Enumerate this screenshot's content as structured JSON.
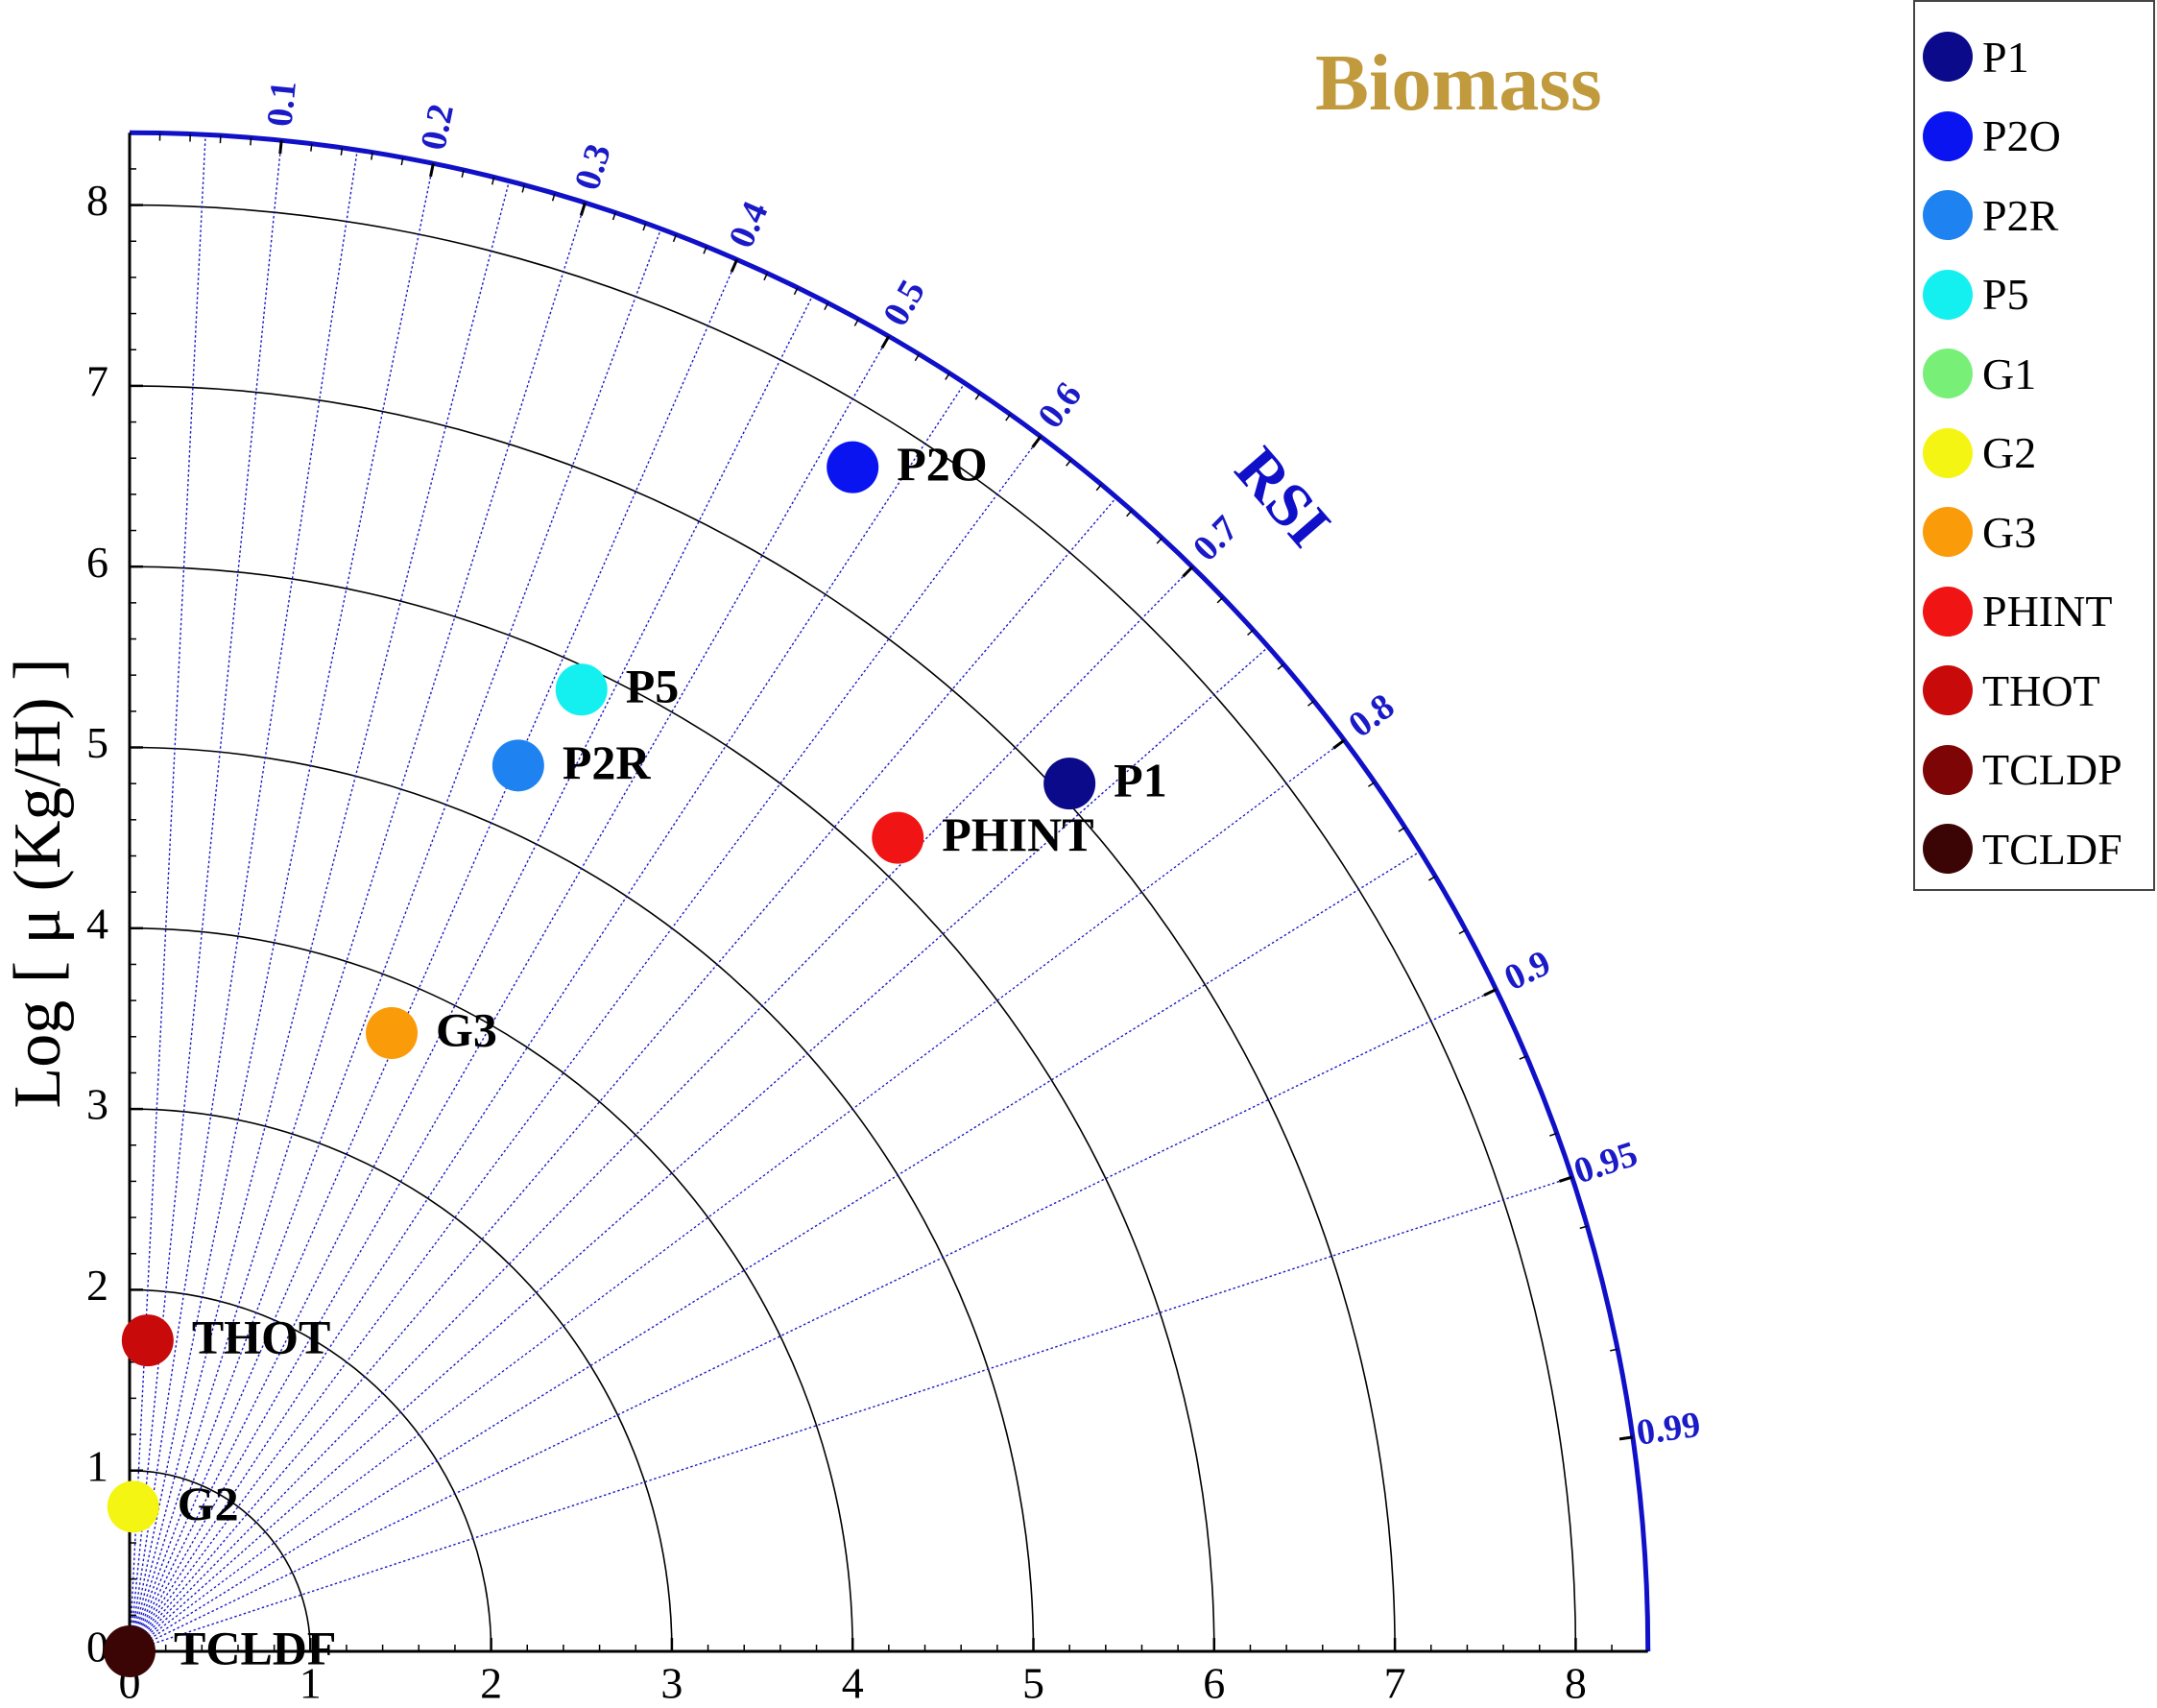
{
  "chart_data": {
    "type": "taylor-diagram",
    "title": "Biomass",
    "ylabel": "Log [ μ (Kg/H) ]",
    "angular_label": "RSI",
    "radial_range": [
      0,
      8.4
    ],
    "radial_ticks": [
      "0",
      "1",
      "2",
      "3",
      "4",
      "5",
      "6",
      "7",
      "8"
    ],
    "x_ticks": [
      "0",
      "1",
      "2",
      "3",
      "4",
      "5",
      "6",
      "7",
      "8"
    ],
    "correlation_ticks": [
      {
        "value": 0.1,
        "label": "0.1"
      },
      {
        "value": 0.2,
        "label": "0.2"
      },
      {
        "value": 0.3,
        "label": "0.3"
      },
      {
        "value": 0.4,
        "label": "0.4"
      },
      {
        "value": 0.5,
        "label": "0.5"
      },
      {
        "value": 0.6,
        "label": "0.6"
      },
      {
        "value": 0.7,
        "label": "0.7"
      },
      {
        "value": 0.8,
        "label": "0.8"
      },
      {
        "value": 0.9,
        "label": "0.9"
      },
      {
        "value": 0.95,
        "label": "0.95"
      },
      {
        "value": 0.99,
        "label": "0.99"
      }
    ],
    "grid": true,
    "legend_position": "top-right",
    "series": [
      {
        "name": "P1",
        "x": 5.2,
        "y": 4.8,
        "color": "#0a0a8a"
      },
      {
        "name": "P2O",
        "x": 4.0,
        "y": 6.55,
        "color": "#0a14f0"
      },
      {
        "name": "P2R",
        "x": 2.15,
        "y": 4.9,
        "color": "#1e82f0"
      },
      {
        "name": "P5",
        "x": 2.5,
        "y": 5.32,
        "color": "#14f0f0"
      },
      {
        "name": "G1",
        "x": null,
        "y": null,
        "color": "#78f078"
      },
      {
        "name": "G2",
        "x": 0.02,
        "y": 0.8,
        "color": "#f5f514"
      },
      {
        "name": "G3",
        "x": 1.45,
        "y": 3.42,
        "color": "#fa9b0a"
      },
      {
        "name": "PHINT",
        "x": 4.25,
        "y": 4.5,
        "color": "#f01414"
      },
      {
        "name": "THOT",
        "x": 0.1,
        "y": 1.72,
        "color": "#c80a0a"
      },
      {
        "name": "TCLDP",
        "x": null,
        "y": null,
        "color": "#7d0505"
      },
      {
        "name": "TCLDF",
        "x": 0.0,
        "y": 0.0,
        "color": "#3c0505"
      }
    ]
  },
  "colors": {
    "title": "#c09a3c",
    "arc": "#1010c8",
    "correlation_line": "#1a1ac8",
    "grid": "#000000"
  }
}
